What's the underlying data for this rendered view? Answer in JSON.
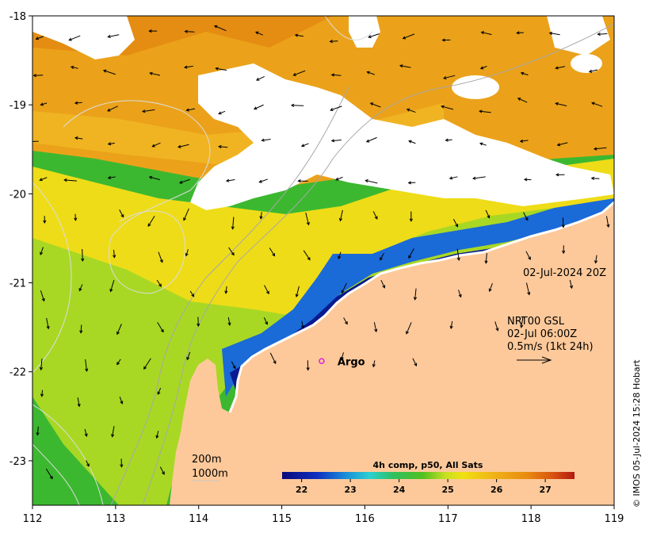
{
  "chart_data": {
    "type": "heatmap",
    "lon_range": [
      112,
      119
    ],
    "lat_range": [
      -23.5,
      -18
    ],
    "x_ticks": [
      "112",
      "113",
      "114",
      "115",
      "116",
      "117",
      "118",
      "119"
    ],
    "y_ticks": [
      "-18",
      "-19",
      "-20",
      "-21",
      "-22",
      "-23"
    ],
    "timestamp": "02-Jul-2024 20Z",
    "current_legend": {
      "line1": "NRT00 GSL",
      "line2": "02-Jul 06:00Z",
      "line3": "0.5m/s (1kt 24h)"
    },
    "isobaths": [
      "200m",
      "1000m"
    ],
    "platform": {
      "label": "Argo",
      "lon": 115.48,
      "lat": -21.88
    },
    "colorbar": {
      "title": "4h comp, p50, All Sats",
      "ticks": [
        "22",
        "23",
        "24",
        "25",
        "26",
        "27"
      ],
      "range": [
        21.6,
        27.6
      ]
    },
    "credit": "© IMOS 05-Jul-2024 15:28 Hobart",
    "colors": {
      "land": "#fdc99a",
      "cloud": "#ffffff",
      "warm": "#eb9a14",
      "cool": "#0a1a8c",
      "argo_marker": "#e020e0"
    }
  }
}
